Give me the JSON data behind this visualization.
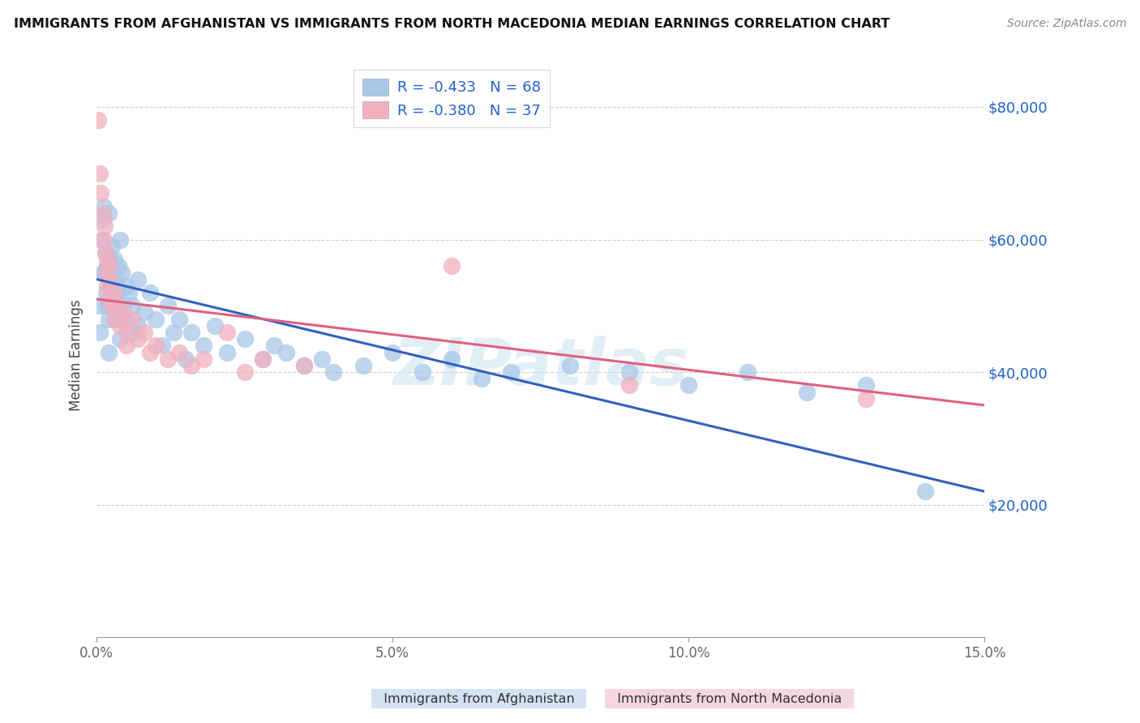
{
  "title": "IMMIGRANTS FROM AFGHANISTAN VS IMMIGRANTS FROM NORTH MACEDONIA MEDIAN EARNINGS CORRELATION CHART",
  "source": "Source: ZipAtlas.com",
  "ylabel": "Median Earnings",
  "legend_blue_r": "R = -0.433",
  "legend_blue_n": "N = 68",
  "legend_pink_r": "R = -0.380",
  "legend_pink_n": "N = 37",
  "watermark": "ZIPatlas",
  "blue_color": "#a8c8e8",
  "pink_color": "#f0b0c0",
  "line_blue": "#3060c0",
  "line_pink": "#e06080",
  "legend_text_color": "#2060d0",
  "ymin": 0,
  "ymax": 85000,
  "xmin": 0.0,
  "xmax": 0.15,
  "yticks": [
    20000,
    40000,
    60000,
    80000
  ],
  "xticks": [
    0.0,
    0.05,
    0.1,
    0.15
  ],
  "afghanistan_x": [
    0.0005,
    0.0008,
    0.001,
    0.0012,
    0.0013,
    0.0015,
    0.0016,
    0.0017,
    0.0018,
    0.002,
    0.002,
    0.0022,
    0.0023,
    0.0025,
    0.0026,
    0.0028,
    0.003,
    0.003,
    0.0032,
    0.0033,
    0.0035,
    0.0037,
    0.004,
    0.004,
    0.0042,
    0.0045,
    0.005,
    0.005,
    0.0055,
    0.006,
    0.006,
    0.007,
    0.007,
    0.008,
    0.009,
    0.01,
    0.011,
    0.012,
    0.013,
    0.014,
    0.015,
    0.016,
    0.018,
    0.02,
    0.022,
    0.025,
    0.028,
    0.03,
    0.032,
    0.035,
    0.038,
    0.04,
    0.045,
    0.05,
    0.055,
    0.06,
    0.065,
    0.07,
    0.08,
    0.09,
    0.1,
    0.11,
    0.12,
    0.13,
    0.14,
    0.0005,
    0.001,
    0.002
  ],
  "afghanistan_y": [
    50000,
    60000,
    63000,
    65000,
    55000,
    58000,
    52000,
    56000,
    50000,
    64000,
    48000,
    57000,
    53000,
    59000,
    55000,
    51000,
    57000,
    50000,
    54000,
    48000,
    52000,
    56000,
    60000,
    45000,
    55000,
    50000,
    53000,
    48000,
    52000,
    50000,
    46000,
    54000,
    47000,
    49000,
    52000,
    48000,
    44000,
    50000,
    46000,
    48000,
    42000,
    46000,
    44000,
    47000,
    43000,
    45000,
    42000,
    44000,
    43000,
    41000,
    42000,
    40000,
    41000,
    43000,
    40000,
    42000,
    39000,
    40000,
    41000,
    40000,
    38000,
    40000,
    37000,
    38000,
    22000,
    46000,
    55000,
    43000
  ],
  "north_macedonia_x": [
    0.0003,
    0.0005,
    0.0007,
    0.001,
    0.0012,
    0.0013,
    0.0015,
    0.0016,
    0.0017,
    0.0018,
    0.002,
    0.002,
    0.0022,
    0.0025,
    0.003,
    0.003,
    0.0035,
    0.004,
    0.0045,
    0.005,
    0.005,
    0.006,
    0.007,
    0.008,
    0.009,
    0.01,
    0.012,
    0.014,
    0.016,
    0.018,
    0.022,
    0.025,
    0.028,
    0.035,
    0.06,
    0.09,
    0.13
  ],
  "north_macedonia_y": [
    78000,
    70000,
    67000,
    64000,
    60000,
    62000,
    58000,
    55000,
    57000,
    53000,
    56000,
    51000,
    54000,
    50000,
    52000,
    48000,
    50000,
    47000,
    49000,
    46000,
    44000,
    48000,
    45000,
    46000,
    43000,
    44000,
    42000,
    43000,
    41000,
    42000,
    46000,
    40000,
    42000,
    41000,
    56000,
    38000,
    36000
  ],
  "afg_line_x0": 0.0,
  "afg_line_y0": 54000,
  "afg_line_x1": 0.15,
  "afg_line_y1": 22000,
  "mac_line_x0": 0.0,
  "mac_line_y0": 51000,
  "mac_line_x1": 0.15,
  "mac_line_y1": 35000
}
